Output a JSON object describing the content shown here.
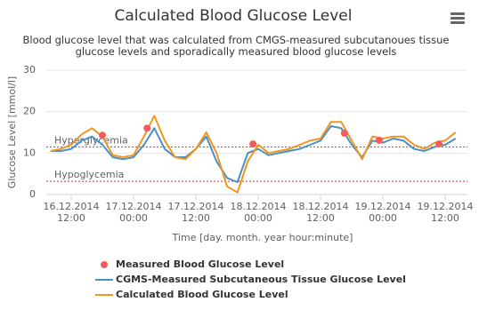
{
  "chart_data": {
    "type": "line",
    "title": "Calculated Blood Glucose Level",
    "subtitle": "Blood glucose level that was calculated from CMGS-measured subcutanoues tissue glucose levels and sporadically measured blood glucose levels",
    "x_label": "Time [day. month. year hour:minute]",
    "y_label": "Glucose Level [mmol/l]",
    "xlim": [
      "2014-12-16T07:12",
      "2014-12-19T16:17"
    ],
    "xticks": [
      {
        "value": "2014-12-16T12:00",
        "label": "16.12.2014 12:00"
      },
      {
        "value": "2014-12-17T00:00",
        "label": "17.12.2014 00:00"
      },
      {
        "value": "2014-12-17T12:00",
        "label": "17.12.2014 12:00"
      },
      {
        "value": "2014-12-18T00:00",
        "label": "18.12.2014 00:00"
      },
      {
        "value": "2014-12-18T12:00",
        "label": "18.12.2014 12:00"
      },
      {
        "value": "2014-12-19T00:00",
        "label": "19.12.2014 00:00"
      },
      {
        "value": "2014-12-19T12:00",
        "label": "19.12.2014 12:00"
      }
    ],
    "ylim": [
      0,
      30
    ],
    "yticks": [
      0,
      10,
      20,
      30
    ],
    "grid": true,
    "x": [
      "2014-12-16T08:00",
      "2014-12-16T10:00",
      "2014-12-16T12:00",
      "2014-12-16T14:00",
      "2014-12-16T16:00",
      "2014-12-16T18:00",
      "2014-12-16T20:00",
      "2014-12-16T22:00",
      "2014-12-17T00:00",
      "2014-12-17T02:00",
      "2014-12-17T04:00",
      "2014-12-17T06:00",
      "2014-12-17T08:00",
      "2014-12-17T10:00",
      "2014-12-17T12:00",
      "2014-12-17T14:00",
      "2014-12-17T16:00",
      "2014-12-17T18:00",
      "2014-12-17T20:00",
      "2014-12-17T22:00",
      "2014-12-18T00:00",
      "2014-12-18T02:00",
      "2014-12-18T04:00",
      "2014-12-18T06:00",
      "2014-12-18T08:00",
      "2014-12-18T10:00",
      "2014-12-18T12:00",
      "2014-12-18T14:00",
      "2014-12-18T16:00",
      "2014-12-18T18:00",
      "2014-12-18T20:00",
      "2014-12-18T22:00",
      "2014-12-19T00:00",
      "2014-12-19T02:00",
      "2014-12-19T04:00",
      "2014-12-19T06:00",
      "2014-12-19T08:00",
      "2014-12-19T10:00",
      "2014-12-19T12:00",
      "2014-12-19T14:00"
    ],
    "series": [
      {
        "name": "Measured Blood Glucose Level",
        "type": "scatter",
        "color": "#f45b5b",
        "x": [
          "2014-12-16T18:00",
          "2014-12-17T02:36",
          "2014-12-17T23:00",
          "2014-12-18T16:36",
          "2014-12-18T23:18",
          "2014-12-19T10:48"
        ],
        "values": [
          14.3,
          16,
          12.2,
          14.8,
          13.1,
          12.2
        ]
      },
      {
        "name": "CGMS-Measured Subcutaneous Tissue Glucose Level",
        "type": "line",
        "color": "#4a90c8",
        "values": [
          10.5,
          10.5,
          11,
          13,
          14,
          12,
          9,
          8.5,
          9,
          12,
          16,
          11,
          9,
          9,
          11,
          14,
          8,
          4,
          3,
          10,
          11,
          9.5,
          10,
          10.5,
          11,
          12,
          13,
          16.5,
          16,
          12,
          9,
          13,
          12.5,
          13.5,
          13,
          11,
          10.5,
          11.5,
          12,
          13.5
        ]
      },
      {
        "name": "Calculated Blood Glucose Level",
        "type": "line",
        "color": "#f0961e",
        "values": [
          10.5,
          11,
          12,
          14.5,
          16,
          14,
          9.5,
          9,
          9.5,
          14,
          19,
          13,
          9,
          8.5,
          11,
          15,
          10,
          2,
          0.5,
          8,
          12,
          10,
          10.5,
          11,
          12,
          13,
          13.5,
          17.5,
          17.5,
          13,
          8.5,
          14,
          13.5,
          14,
          14,
          12,
          11,
          12.5,
          13,
          15
        ]
      }
    ],
    "plot_lines": [
      {
        "label": "Hyperglycemia",
        "value": 11.5,
        "color": "#c0392b"
      },
      {
        "label": "Hypoglycemia",
        "value": 3.2,
        "color": "#c0392b"
      }
    ]
  }
}
